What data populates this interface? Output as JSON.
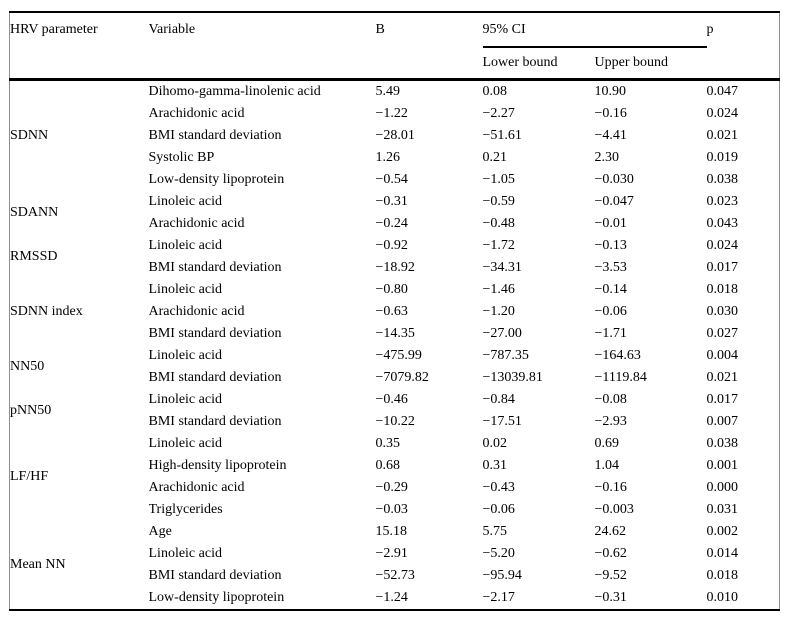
{
  "table": {
    "header": {
      "hrv_parameter": "HRV parameter",
      "variable": "Variable",
      "b": "B",
      "ci": "95% CI",
      "ci_lower": "Lower bound",
      "ci_upper": "Upper bound",
      "p": "p"
    },
    "groups": [
      {
        "parameter": "SDNN",
        "rows": [
          {
            "variable": "Dihomo-gamma-linolenic acid",
            "b": "5.49",
            "lower": "0.08",
            "upper": "10.90",
            "p": "0.047"
          },
          {
            "variable": "Arachidonic acid",
            "b": "−1.22",
            "lower": "−2.27",
            "upper": "−0.16",
            "p": "0.024"
          },
          {
            "variable": "BMI standard deviation",
            "b": "−28.01",
            "lower": "−51.61",
            "upper": "−4.41",
            "p": "0.021"
          },
          {
            "variable": "Systolic BP",
            "b": "1.26",
            "lower": "0.21",
            "upper": "2.30",
            "p": "0.019"
          },
          {
            "variable": "Low-density lipoprotein",
            "b": "−0.54",
            "lower": "−1.05",
            "upper": "−0.030",
            "p": "0.038"
          }
        ]
      },
      {
        "parameter": "SDANN",
        "rows": [
          {
            "variable": "Linoleic acid",
            "b": "−0.31",
            "lower": "−0.59",
            "upper": "−0.047",
            "p": "0.023"
          },
          {
            "variable": "Arachidonic acid",
            "b": "−0.24",
            "lower": "−0.48",
            "upper": "−0.01",
            "p": "0.043"
          }
        ]
      },
      {
        "parameter": "RMSSD",
        "rows": [
          {
            "variable": "Linoleic acid",
            "b": "−0.92",
            "lower": "−1.72",
            "upper": "−0.13",
            "p": "0.024"
          },
          {
            "variable": "BMI standard deviation",
            "b": "−18.92",
            "lower": "−34.31",
            "upper": "−3.53",
            "p": "0.017"
          }
        ]
      },
      {
        "parameter": "SDNN index",
        "rows": [
          {
            "variable": "Linoleic acid",
            "b": "−0.80",
            "lower": "−1.46",
            "upper": "−0.14",
            "p": "0.018"
          },
          {
            "variable": "Arachidonic acid",
            "b": "−0.63",
            "lower": "−1.20",
            "upper": "−0.06",
            "p": "0.030"
          },
          {
            "variable": "BMI standard deviation",
            "b": "−14.35",
            "lower": "−27.00",
            "upper": "−1.71",
            "p": "0.027"
          }
        ]
      },
      {
        "parameter": "NN50",
        "rows": [
          {
            "variable": "Linoleic acid",
            "b": "−475.99",
            "lower": "−787.35",
            "upper": "−164.63",
            "p": "0.004"
          },
          {
            "variable": "BMI standard deviation",
            "b": "−7079.82",
            "lower": "−13039.81",
            "upper": "−1119.84",
            "p": "0.021"
          }
        ]
      },
      {
        "parameter": "pNN50",
        "rows": [
          {
            "variable": "Linoleic acid",
            "b": "−0.46",
            "lower": "−0.84",
            "upper": "−0.08",
            "p": "0.017"
          },
          {
            "variable": "BMI standard deviation",
            "b": "−10.22",
            "lower": "−17.51",
            "upper": "−2.93",
            "p": "0.007"
          }
        ]
      },
      {
        "parameter": "LF/HF",
        "rows": [
          {
            "variable": "Linoleic acid",
            "b": "0.35",
            "lower": "0.02",
            "upper": "0.69",
            "p": "0.038"
          },
          {
            "variable": "High-density lipoprotein",
            "b": "0.68",
            "lower": "0.31",
            "upper": "1.04",
            "p": "0.001"
          },
          {
            "variable": "Arachidonic acid",
            "b": "−0.29",
            "lower": "−0.43",
            "upper": "−0.16",
            "p": "0.000"
          },
          {
            "variable": "Triglycerides",
            "b": "−0.03",
            "lower": "−0.06",
            "upper": "−0.003",
            "p": "0.031"
          }
        ]
      },
      {
        "parameter": "Mean NN",
        "rows": [
          {
            "variable": "Age",
            "b": "15.18",
            "lower": "5.75",
            "upper": "24.62",
            "p": "0.002"
          },
          {
            "variable": "Linoleic acid",
            "b": "−2.91",
            "lower": "−5.20",
            "upper": "−0.62",
            "p": "0.014"
          },
          {
            "variable": "BMI standard deviation",
            "b": "−52.73",
            "lower": "−95.94",
            "upper": "−9.52",
            "p": "0.018"
          },
          {
            "variable": "Low-density lipoprotein",
            "b": "−1.24",
            "lower": "−2.17",
            "upper": "−0.31",
            "p": "0.010"
          }
        ]
      }
    ]
  },
  "colors": {
    "text": "#000000",
    "background": "#ffffff",
    "rule": "#000000",
    "side_border": "#8f8f8f"
  }
}
